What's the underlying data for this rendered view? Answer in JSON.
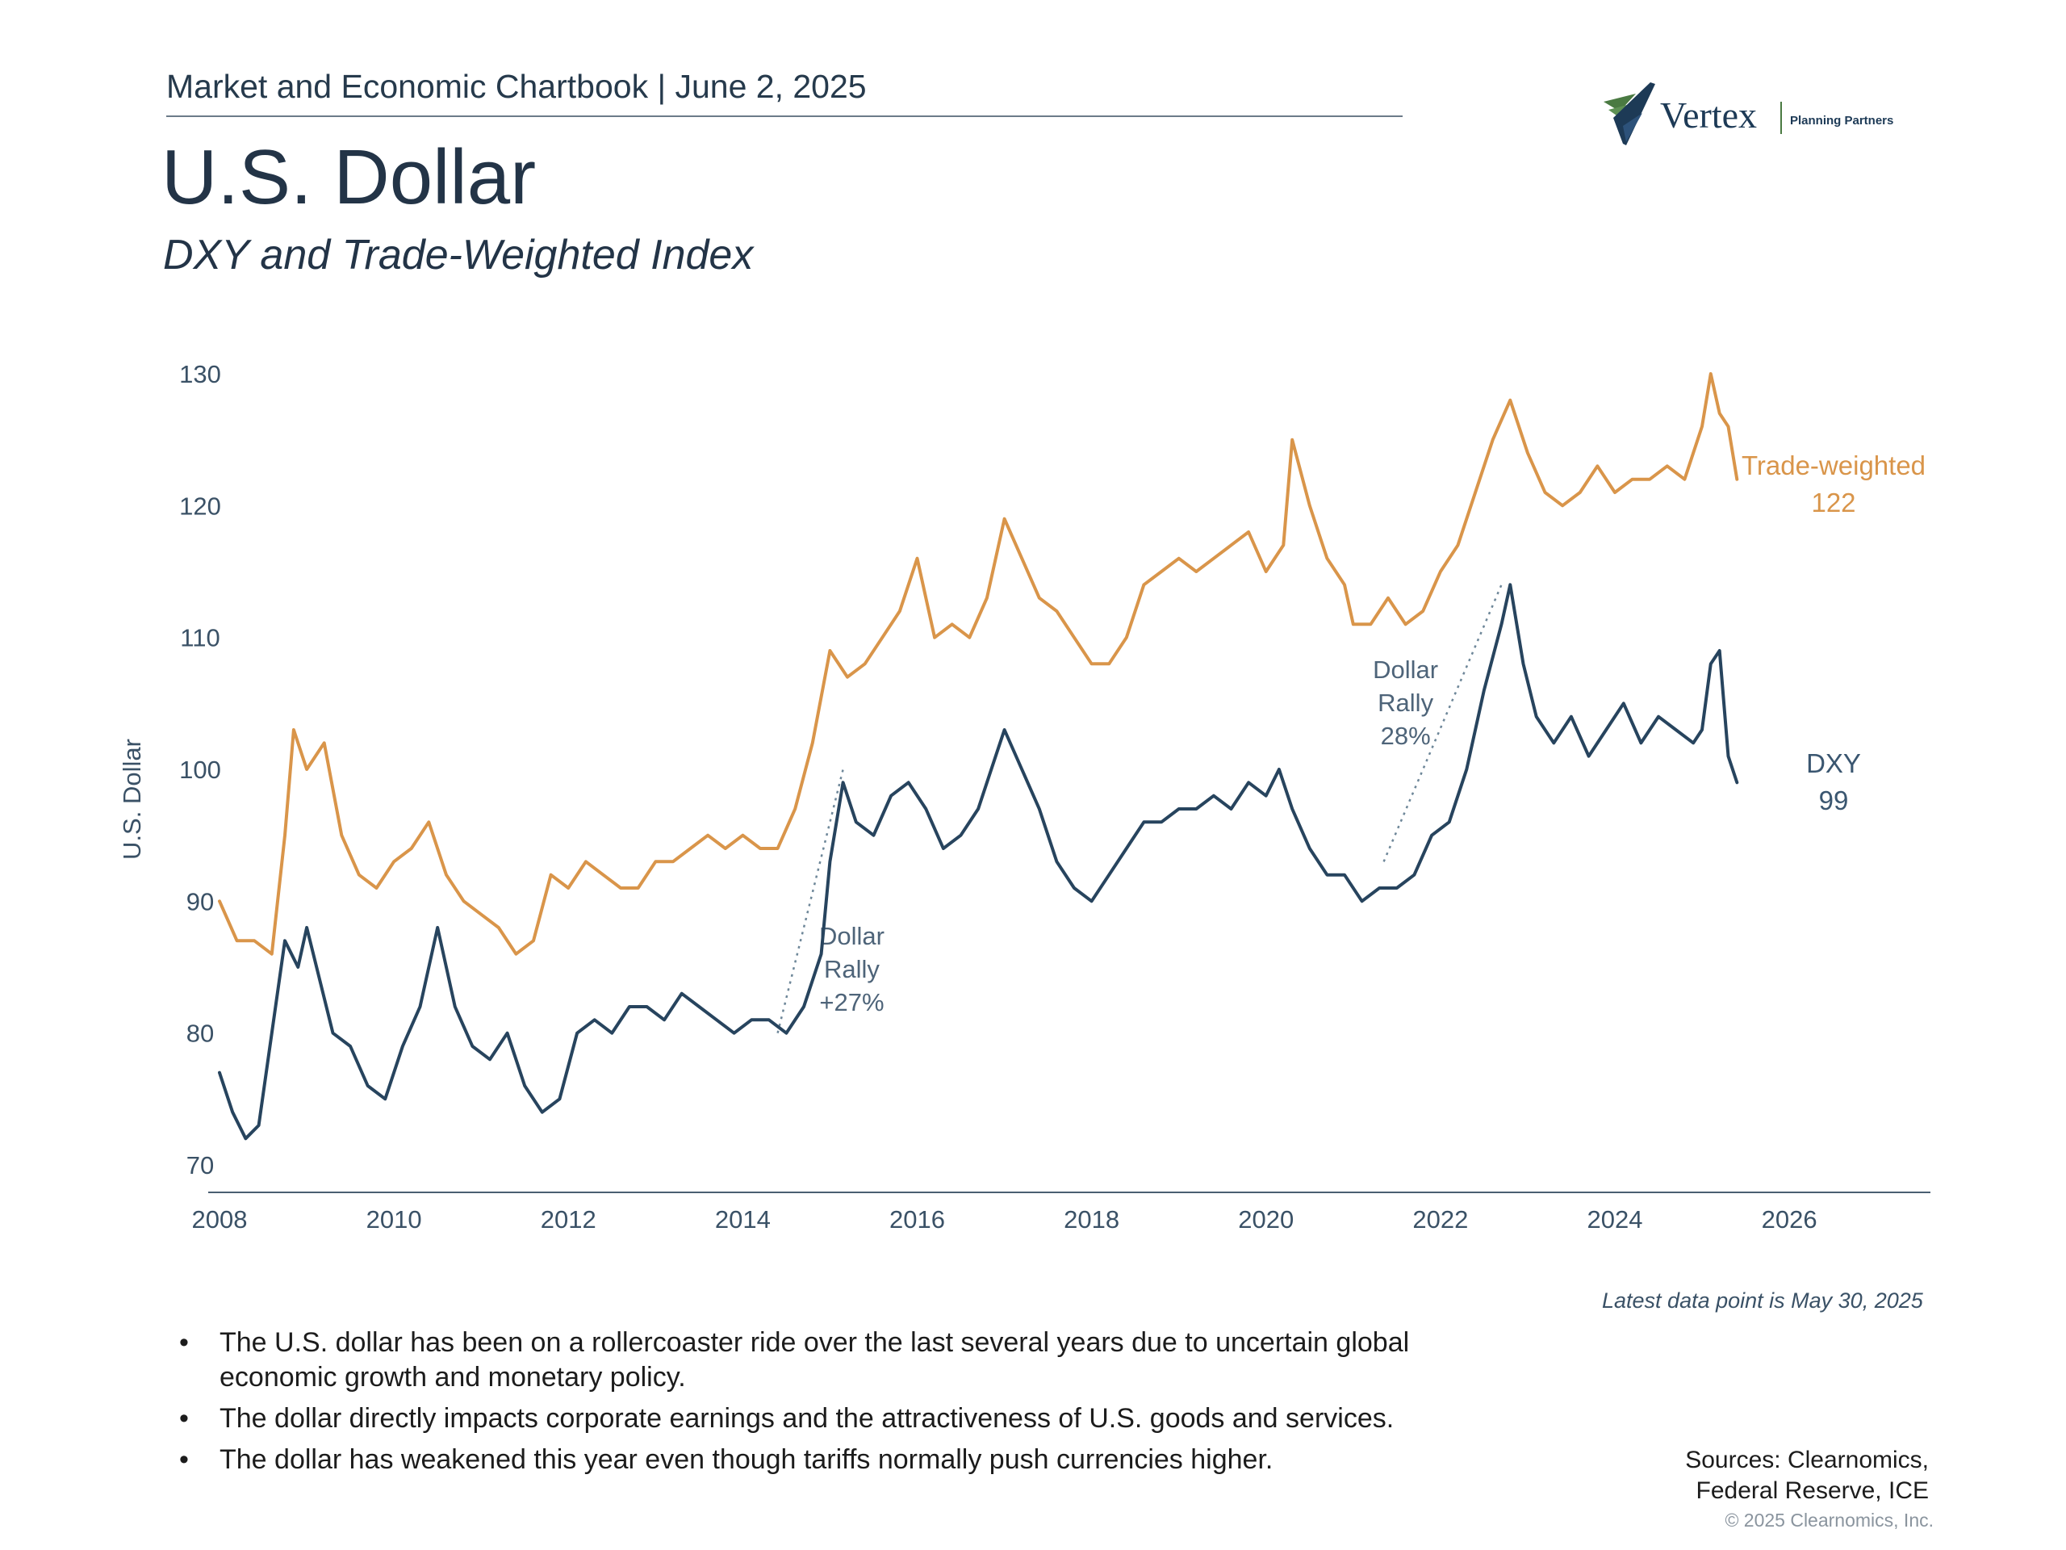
{
  "header": {
    "text": "Market and Economic Chartbook | June 2, 2025"
  },
  "title": "U.S. Dollar",
  "subtitle": "DXY and Trade-Weighted Index",
  "logo": {
    "name": "Vertex",
    "tagline": "Planning Partners"
  },
  "colors": {
    "trade_weighted": "#d9954a",
    "dxy": "#27445e",
    "axis": "#4a5f72",
    "annotation_line": "#6e8799"
  },
  "chart_data": {
    "type": "line",
    "ylabel": "U.S. Dollar",
    "xlabel": "",
    "xlim": [
      2008.0,
      2027.6
    ],
    "ylim": [
      70,
      130
    ],
    "x_ticks": [
      "2008",
      "2010",
      "2012",
      "2014",
      "2016",
      "2018",
      "2020",
      "2022",
      "2024",
      "2026"
    ],
    "y_ticks": [
      "70",
      "80",
      "90",
      "100",
      "110",
      "120",
      "130"
    ],
    "series": [
      {
        "name": "Trade-weighted",
        "end_label": {
          "name": "Trade-weighted",
          "value": "122"
        },
        "x": [
          2008.0,
          2008.2,
          2008.4,
          2008.6,
          2008.75,
          2008.85,
          2009.0,
          2009.2,
          2009.4,
          2009.6,
          2009.8,
          2010.0,
          2010.2,
          2010.4,
          2010.6,
          2010.8,
          2011.0,
          2011.2,
          2011.4,
          2011.6,
          2011.8,
          2012.0,
          2012.2,
          2012.4,
          2012.6,
          2012.8,
          2013.0,
          2013.2,
          2013.4,
          2013.6,
          2013.8,
          2014.0,
          2014.2,
          2014.4,
          2014.6,
          2014.8,
          2015.0,
          2015.2,
          2015.4,
          2015.6,
          2015.8,
          2016.0,
          2016.2,
          2016.4,
          2016.6,
          2016.8,
          2017.0,
          2017.2,
          2017.4,
          2017.6,
          2017.8,
          2018.0,
          2018.2,
          2018.4,
          2018.6,
          2018.8,
          2019.0,
          2019.2,
          2019.4,
          2019.6,
          2019.8,
          2020.0,
          2020.2,
          2020.3,
          2020.5,
          2020.7,
          2020.9,
          2021.0,
          2021.2,
          2021.4,
          2021.6,
          2021.8,
          2022.0,
          2022.2,
          2022.4,
          2022.6,
          2022.8,
          2023.0,
          2023.2,
          2023.4,
          2023.6,
          2023.8,
          2024.0,
          2024.2,
          2024.4,
          2024.6,
          2024.8,
          2025.0,
          2025.1,
          2025.2,
          2025.3,
          2025.4
        ],
        "y": [
          90,
          87,
          87,
          86,
          95,
          103,
          100,
          102,
          95,
          92,
          91,
          93,
          94,
          96,
          92,
          90,
          89,
          88,
          86,
          87,
          92,
          91,
          93,
          92,
          91,
          91,
          93,
          93,
          94,
          95,
          94,
          95,
          94,
          94,
          97,
          102,
          109,
          107,
          108,
          110,
          112,
          116,
          110,
          111,
          110,
          113,
          119,
          116,
          113,
          112,
          110,
          108,
          108,
          110,
          114,
          115,
          116,
          115,
          116,
          117,
          118,
          115,
          117,
          125,
          120,
          116,
          114,
          111,
          111,
          113,
          111,
          112,
          115,
          117,
          121,
          125,
          128,
          124,
          121,
          120,
          121,
          123,
          121,
          122,
          122,
          123,
          122,
          126,
          130,
          127,
          126,
          122
        ]
      },
      {
        "name": "DXY",
        "end_label": {
          "name": "DXY",
          "value": "99"
        },
        "x": [
          2008.0,
          2008.15,
          2008.3,
          2008.45,
          2008.6,
          2008.75,
          2008.9,
          2009.0,
          2009.15,
          2009.3,
          2009.5,
          2009.7,
          2009.9,
          2010.1,
          2010.3,
          2010.5,
          2010.7,
          2010.9,
          2011.1,
          2011.3,
          2011.5,
          2011.7,
          2011.9,
          2012.1,
          2012.3,
          2012.5,
          2012.7,
          2012.9,
          2013.1,
          2013.3,
          2013.5,
          2013.7,
          2013.9,
          2014.1,
          2014.3,
          2014.5,
          2014.7,
          2014.9,
          2015.0,
          2015.15,
          2015.3,
          2015.5,
          2015.7,
          2015.9,
          2016.1,
          2016.3,
          2016.5,
          2016.7,
          2016.9,
          2017.0,
          2017.2,
          2017.4,
          2017.6,
          2017.8,
          2018.0,
          2018.2,
          2018.4,
          2018.6,
          2018.8,
          2019.0,
          2019.2,
          2019.4,
          2019.6,
          2019.8,
          2020.0,
          2020.15,
          2020.3,
          2020.5,
          2020.7,
          2020.9,
          2021.1,
          2021.3,
          2021.5,
          2021.7,
          2021.9,
          2022.1,
          2022.3,
          2022.5,
          2022.7,
          2022.8,
          2022.95,
          2023.1,
          2023.3,
          2023.5,
          2023.7,
          2023.9,
          2024.1,
          2024.3,
          2024.5,
          2024.7,
          2024.9,
          2025.0,
          2025.1,
          2025.2,
          2025.3,
          2025.4
        ],
        "y": [
          77,
          74,
          72,
          73,
          80,
          87,
          85,
          88,
          84,
          80,
          79,
          76,
          75,
          79,
          82,
          88,
          82,
          79,
          78,
          80,
          76,
          74,
          75,
          80,
          81,
          80,
          82,
          82,
          81,
          83,
          82,
          81,
          80,
          81,
          81,
          80,
          82,
          86,
          93,
          99,
          96,
          95,
          98,
          99,
          97,
          94,
          95,
          97,
          101,
          103,
          100,
          97,
          93,
          91,
          90,
          92,
          94,
          96,
          96,
          97,
          97,
          98,
          97,
          99,
          98,
          100,
          97,
          94,
          92,
          92,
          90,
          91,
          91,
          92,
          95,
          96,
          100,
          106,
          111,
          114,
          108,
          104,
          102,
          104,
          101,
          103,
          105,
          102,
          104,
          103,
          102,
          103,
          108,
          109,
          101,
          99
        ]
      }
    ],
    "annotations": [
      {
        "label_lines": [
          "Dollar",
          "Rally",
          "+27%"
        ],
        "from": [
          2014.4,
          80
        ],
        "to": [
          2015.15,
          100
        ]
      },
      {
        "label_lines": [
          "Dollar",
          "Rally",
          "28%"
        ],
        "from": [
          2021.35,
          93
        ],
        "to": [
          2022.7,
          114
        ]
      }
    ]
  },
  "latest_note": "Latest data point is May 30, 2025",
  "bullets": [
    "The U.S. dollar has been on a rollercoaster ride over the last several years due to uncertain global economic growth and monetary policy.",
    "The dollar directly impacts corporate earnings and the attractiveness of U.S. goods and services.",
    "The dollar has weakened this year even though tariffs normally push currencies higher."
  ],
  "sources": [
    "Sources: Clearnomics,",
    "Federal Reserve, ICE"
  ],
  "copyright": "© 2025 Clearnomics, Inc."
}
